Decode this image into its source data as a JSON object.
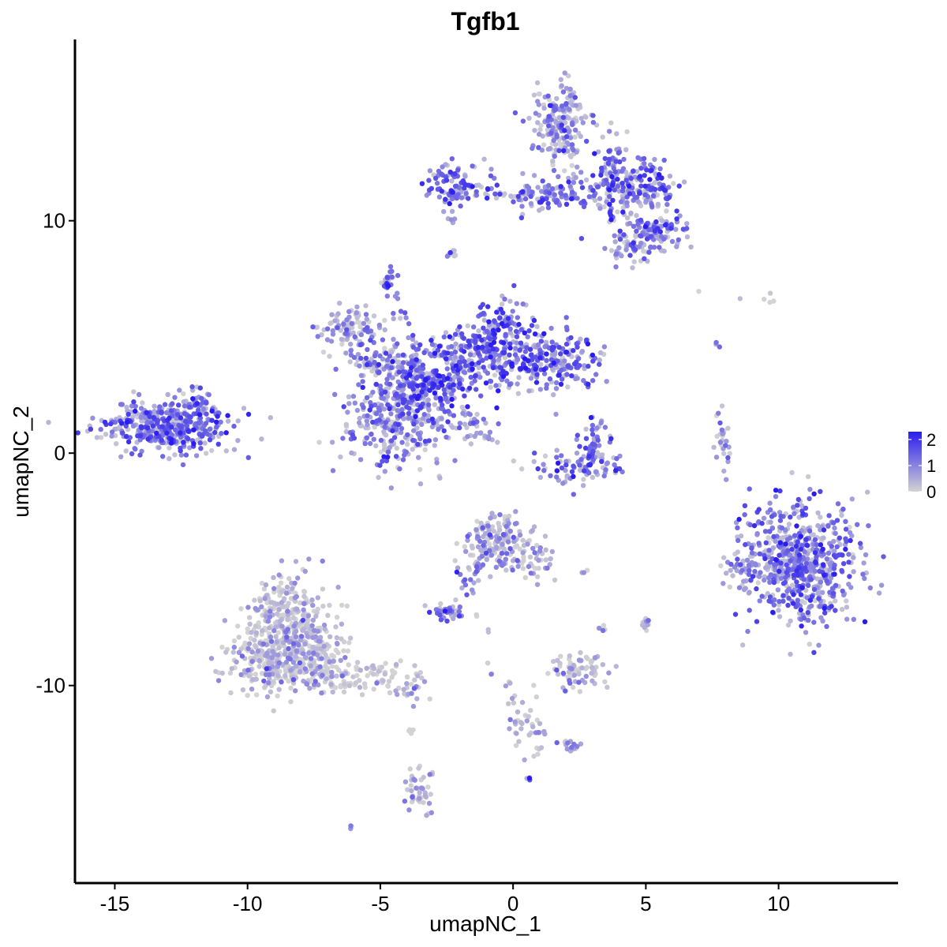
{
  "chart_data": {
    "type": "scatter",
    "title": "Tgfb1",
    "xlabel": "umapNC_1",
    "ylabel": "umapNC_2",
    "xlim": [
      -16.5,
      14.5
    ],
    "ylim": [
      -18.5,
      17.8
    ],
    "x_ticks": [
      -15,
      -10,
      -5,
      0,
      5,
      10
    ],
    "x_tick_labels": [
      "-15",
      "-10",
      "-5",
      "0",
      "5",
      "10"
    ],
    "y_ticks": [
      -10,
      0,
      10
    ],
    "y_tick_labels": [
      "-10",
      "0",
      "10"
    ],
    "grid": false,
    "legend_position": "right",
    "colors": {
      "low": "#d3d3d3",
      "high": "#2a1cf0"
    },
    "color_scale": {
      "min": 0,
      "max": 2.3,
      "ticks": [
        0,
        1,
        2
      ],
      "tick_labels": [
        "0",
        "1",
        "2"
      ]
    },
    "clusters": [
      {
        "cx": -13.0,
        "cy": 1.1,
        "sx": 1.2,
        "sy": 0.55,
        "n": 420,
        "expr": 1.3
      },
      {
        "cx": -11.8,
        "cy": 2.2,
        "sx": 0.3,
        "sy": 0.4,
        "n": 40,
        "expr": 1.2
      },
      {
        "cx": -4.5,
        "cy": 1.0,
        "sx": 1.0,
        "sy": 0.9,
        "n": 240,
        "expr": 0.9
      },
      {
        "cx": -3.6,
        "cy": 2.8,
        "sx": 0.9,
        "sy": 0.7,
        "n": 260,
        "expr": 1.5
      },
      {
        "cx": -1.5,
        "cy": 4.0,
        "sx": 1.0,
        "sy": 0.7,
        "n": 220,
        "expr": 1.3
      },
      {
        "cx": -0.5,
        "cy": 5.3,
        "sx": 0.6,
        "sy": 0.7,
        "n": 120,
        "expr": 1.4
      },
      {
        "cx": 1.4,
        "cy": 4.0,
        "sx": 0.9,
        "sy": 0.6,
        "n": 200,
        "expr": 1.3
      },
      {
        "cx": -6.0,
        "cy": 5.3,
        "sx": 0.8,
        "sy": 0.5,
        "n": 100,
        "expr": 0.8
      },
      {
        "cx": -4.8,
        "cy": 4.0,
        "sx": 0.8,
        "sy": 0.4,
        "n": 90,
        "expr": 1.0
      },
      {
        "cx": -4.7,
        "cy": 7.3,
        "sx": 0.12,
        "sy": 0.25,
        "n": 25,
        "expr": 1.4
      },
      {
        "cx": -2.3,
        "cy": 8.6,
        "sx": 0.1,
        "sy": 0.1,
        "n": 10,
        "expr": 1.2
      },
      {
        "cx": -2.0,
        "cy": 1.2,
        "sx": 0.5,
        "sy": 0.4,
        "n": 25,
        "expr": 1.0
      },
      {
        "cx": 1.8,
        "cy": 14.2,
        "sx": 0.5,
        "sy": 0.9,
        "n": 200,
        "expr": 0.8
      },
      {
        "cx": 3.8,
        "cy": 11.8,
        "sx": 0.6,
        "sy": 0.9,
        "n": 160,
        "expr": 1.2
      },
      {
        "cx": 5.2,
        "cy": 11.5,
        "sx": 0.5,
        "sy": 0.5,
        "n": 90,
        "expr": 1.4
      },
      {
        "cx": 5.3,
        "cy": 9.6,
        "sx": 0.6,
        "sy": 0.35,
        "n": 100,
        "expr": 1.1
      },
      {
        "cx": 4.5,
        "cy": 8.8,
        "sx": 0.5,
        "sy": 0.4,
        "n": 50,
        "expr": 0.9
      },
      {
        "cx": -2.2,
        "cy": 11.5,
        "sx": 0.6,
        "sy": 0.5,
        "n": 90,
        "expr": 1.3
      },
      {
        "cx": 0.0,
        "cy": 11.2,
        "sx": 1.0,
        "sy": 0.2,
        "n": 60,
        "expr": 1.0
      },
      {
        "cx": 1.5,
        "cy": 11.2,
        "sx": 0.6,
        "sy": 0.4,
        "n": 70,
        "expr": 1.2
      },
      {
        "cx": 3.0,
        "cy": 0.6,
        "sx": 0.3,
        "sy": 0.5,
        "n": 40,
        "expr": 1.4
      },
      {
        "cx": 2.6,
        "cy": -0.6,
        "sx": 0.9,
        "sy": 0.4,
        "n": 90,
        "expr": 1.2
      },
      {
        "cx": 7.9,
        "cy": 0.3,
        "sx": 0.2,
        "sy": 0.6,
        "n": 30,
        "expr": 0.5
      },
      {
        "cx": 10.8,
        "cy": -4.8,
        "sx": 1.1,
        "sy": 1.3,
        "n": 620,
        "expr": 1.2
      },
      {
        "cx": 8.7,
        "cy": -5.0,
        "sx": 0.3,
        "sy": 0.5,
        "n": 40,
        "expr": 0.7
      },
      {
        "cx": -0.6,
        "cy": -3.8,
        "sx": 0.6,
        "sy": 0.6,
        "n": 160,
        "expr": 0.6
      },
      {
        "cx": 0.9,
        "cy": -4.6,
        "sx": 0.4,
        "sy": 0.5,
        "n": 40,
        "expr": 0.5
      },
      {
        "cx": -1.7,
        "cy": -5.3,
        "sx": 0.4,
        "sy": 0.6,
        "n": 20,
        "expr": 0.9
      },
      {
        "cx": -2.5,
        "cy": -6.9,
        "sx": 0.25,
        "sy": 0.2,
        "n": 40,
        "expr": 1.3
      },
      {
        "cx": -8.4,
        "cy": -7.0,
        "sx": 0.7,
        "sy": 0.9,
        "n": 260,
        "expr": 0.3
      },
      {
        "cx": -8.5,
        "cy": -8.9,
        "sx": 1.1,
        "sy": 0.7,
        "n": 420,
        "expr": 0.25
      },
      {
        "cx": -5.5,
        "cy": -9.6,
        "sx": 1.2,
        "sy": 0.4,
        "n": 90,
        "expr": 0.15
      },
      {
        "cx": -4.2,
        "cy": -10.3,
        "sx": 0.3,
        "sy": 0.2,
        "n": 15,
        "expr": 0.3
      },
      {
        "cx": 2.6,
        "cy": -9.3,
        "sx": 0.5,
        "sy": 0.4,
        "n": 70,
        "expr": 0.4
      },
      {
        "cx": 0.5,
        "cy": -11.8,
        "sx": 0.5,
        "sy": 0.7,
        "n": 30,
        "expr": 0.3
      },
      {
        "cx": 2.2,
        "cy": -12.6,
        "sx": 0.3,
        "sy": 0.15,
        "n": 15,
        "expr": 0.6
      },
      {
        "cx": -3.6,
        "cy": -14.6,
        "sx": 0.25,
        "sy": 0.45,
        "n": 45,
        "expr": 0.5
      },
      {
        "cx": 5.0,
        "cy": -7.3,
        "sx": 0.1,
        "sy": 0.15,
        "n": 12,
        "expr": 0.3
      },
      {
        "cx": 3.4,
        "cy": -7.6,
        "sx": 0.1,
        "sy": 0.1,
        "n": 5,
        "expr": 0.2
      },
      {
        "cx": 0.6,
        "cy": -14.0,
        "sx": 0.06,
        "sy": 0.06,
        "n": 4,
        "expr": 1.4
      },
      {
        "cx": -6.1,
        "cy": -16.1,
        "sx": 0.05,
        "sy": 0.05,
        "n": 4,
        "expr": 0.8
      },
      {
        "cx": -3.9,
        "cy": -11.9,
        "sx": 0.05,
        "sy": 0.2,
        "n": 4,
        "expr": 0.3
      },
      {
        "cx": 9.5,
        "cy": 6.7,
        "sx": 0.3,
        "sy": 0.15,
        "n": 4,
        "expr": 0.0
      },
      {
        "cx": 7.7,
        "cy": 4.7,
        "sx": 0.05,
        "sy": 0.1,
        "n": 3,
        "expr": 1.0
      },
      {
        "cx": 7.0,
        "cy": 6.9,
        "sx": 0.04,
        "sy": 0.04,
        "n": 1,
        "expr": 0.0
      },
      {
        "cx": 8.5,
        "cy": 6.7,
        "sx": 0.04,
        "sy": 0.04,
        "n": 1,
        "expr": 0.0
      },
      {
        "cx": 2.7,
        "cy": -5.1,
        "sx": 0.1,
        "sy": 0.05,
        "n": 3,
        "expr": 0.5
      },
      {
        "cx": -1.3,
        "cy": -7.0,
        "sx": 0.05,
        "sy": 0.05,
        "n": 2,
        "expr": 0.0
      },
      {
        "cx": -0.9,
        "cy": -7.7,
        "sx": 0.05,
        "sy": 0.05,
        "n": 2,
        "expr": 0.0
      },
      {
        "cx": -0.9,
        "cy": -9.3,
        "sx": 0.08,
        "sy": 0.15,
        "n": 3,
        "expr": 0.2
      }
    ],
    "streaks": [
      {
        "from": [
          -1.8,
          1.8
        ],
        "to": [
          -1.2,
          0.8
        ],
        "n": 18,
        "expr": 0.8
      },
      {
        "from": [
          -1.2,
          0.8
        ],
        "to": [
          -0.7,
          0.5
        ],
        "n": 8,
        "expr": 0.6
      },
      {
        "from": [
          -4.4,
          6.9
        ],
        "to": [
          -3.5,
          4.3
        ],
        "n": 14,
        "expr": 1.0
      },
      {
        "from": [
          -2.3,
          10.5
        ],
        "to": [
          -2.3,
          9.9
        ],
        "n": 4,
        "expr": 0.7
      },
      {
        "from": [
          -1.7,
          -6.2
        ],
        "to": [
          -1.3,
          -4.7
        ],
        "n": 8,
        "expr": 1.0
      },
      {
        "from": [
          0.0,
          -10.8
        ],
        "to": [
          -0.3,
          -9.6
        ],
        "n": 5,
        "expr": 0.4
      },
      {
        "from": [
          0.0,
          -11.5
        ],
        "to": [
          1.5,
          -12.3
        ],
        "n": 10,
        "expr": 0.5
      }
    ]
  }
}
